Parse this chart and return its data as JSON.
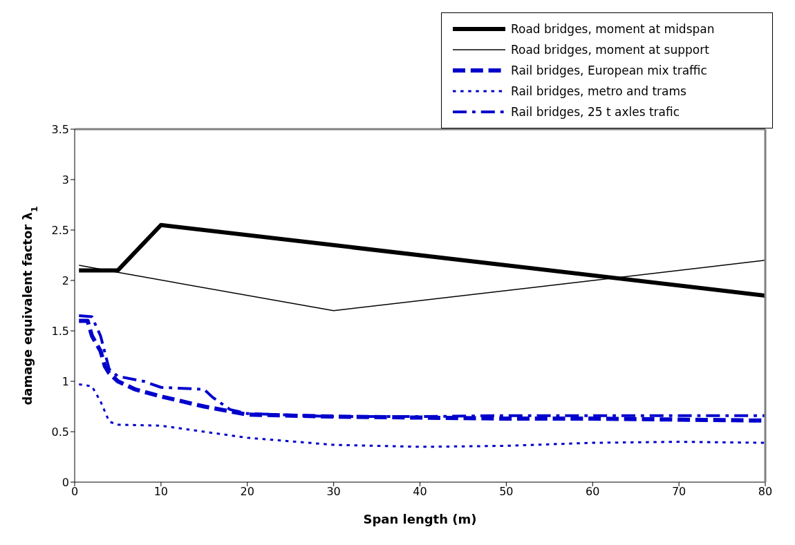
{
  "chart_data": {
    "type": "line",
    "xlabel": "Span length (m)",
    "ylabel": "damage equivalent factor λ$_{1}$",
    "xlim": [
      0,
      80
    ],
    "xticks": [
      0,
      10,
      20,
      30,
      40,
      50,
      60,
      70,
      80
    ],
    "ylim": [
      0,
      3.5
    ],
    "yticks": [
      0,
      0.5,
      1,
      1.5,
      2,
      2.5,
      3,
      3.5
    ],
    "grid": false,
    "legend": "top right",
    "marker": "none",
    "series": [
      {
        "name": "Road bridges, moment at midspan",
        "color": "#000000",
        "line_style": "solid",
        "x": [
          0.5,
          5,
          10,
          80
        ],
        "values": [
          2.1,
          2.1,
          2.55,
          1.85
        ]
      },
      {
        "name": "Road bridges, moment at support",
        "color": "#000000",
        "line_style": "solid",
        "x": [
          0.5,
          5,
          30,
          80
        ],
        "values": [
          2.15,
          2.08,
          1.7,
          2.2
        ]
      },
      {
        "name": "Rail bridges, European mix traffic",
        "color": "#0000cc",
        "line_style": "dashed",
        "x": [
          0.5,
          1.5,
          2,
          3,
          3.5,
          4,
          5,
          7,
          10,
          15,
          20,
          30,
          40,
          50,
          60,
          80
        ],
        "values": [
          1.6,
          1.6,
          1.45,
          1.3,
          1.15,
          1.08,
          1.0,
          0.92,
          0.85,
          0.75,
          0.67,
          0.65,
          0.64,
          0.63,
          0.63,
          0.61
        ]
      },
      {
        "name": "Rail bridges, metro and trams",
        "color": "#0000cc",
        "line_style": "dotted",
        "x": [
          0.5,
          2,
          3,
          4,
          5,
          10,
          15,
          20,
          30,
          40,
          50,
          60,
          70,
          80
        ],
        "values": [
          0.97,
          0.95,
          0.8,
          0.6,
          0.57,
          0.56,
          0.5,
          0.44,
          0.37,
          0.35,
          0.36,
          0.39,
          0.4,
          0.39
        ]
      },
      {
        "name": "Rail bridges, 25 t axles trafic",
        "color": "#0000cc",
        "line_style": "dashdot",
        "x": [
          0.5,
          2,
          3,
          4,
          5,
          8,
          10,
          15,
          16,
          18,
          20,
          30,
          40,
          50,
          60,
          80
        ],
        "values": [
          1.65,
          1.64,
          1.45,
          1.12,
          1.05,
          1.0,
          0.94,
          0.92,
          0.84,
          0.72,
          0.68,
          0.65,
          0.65,
          0.66,
          0.66,
          0.66
        ]
      }
    ]
  }
}
